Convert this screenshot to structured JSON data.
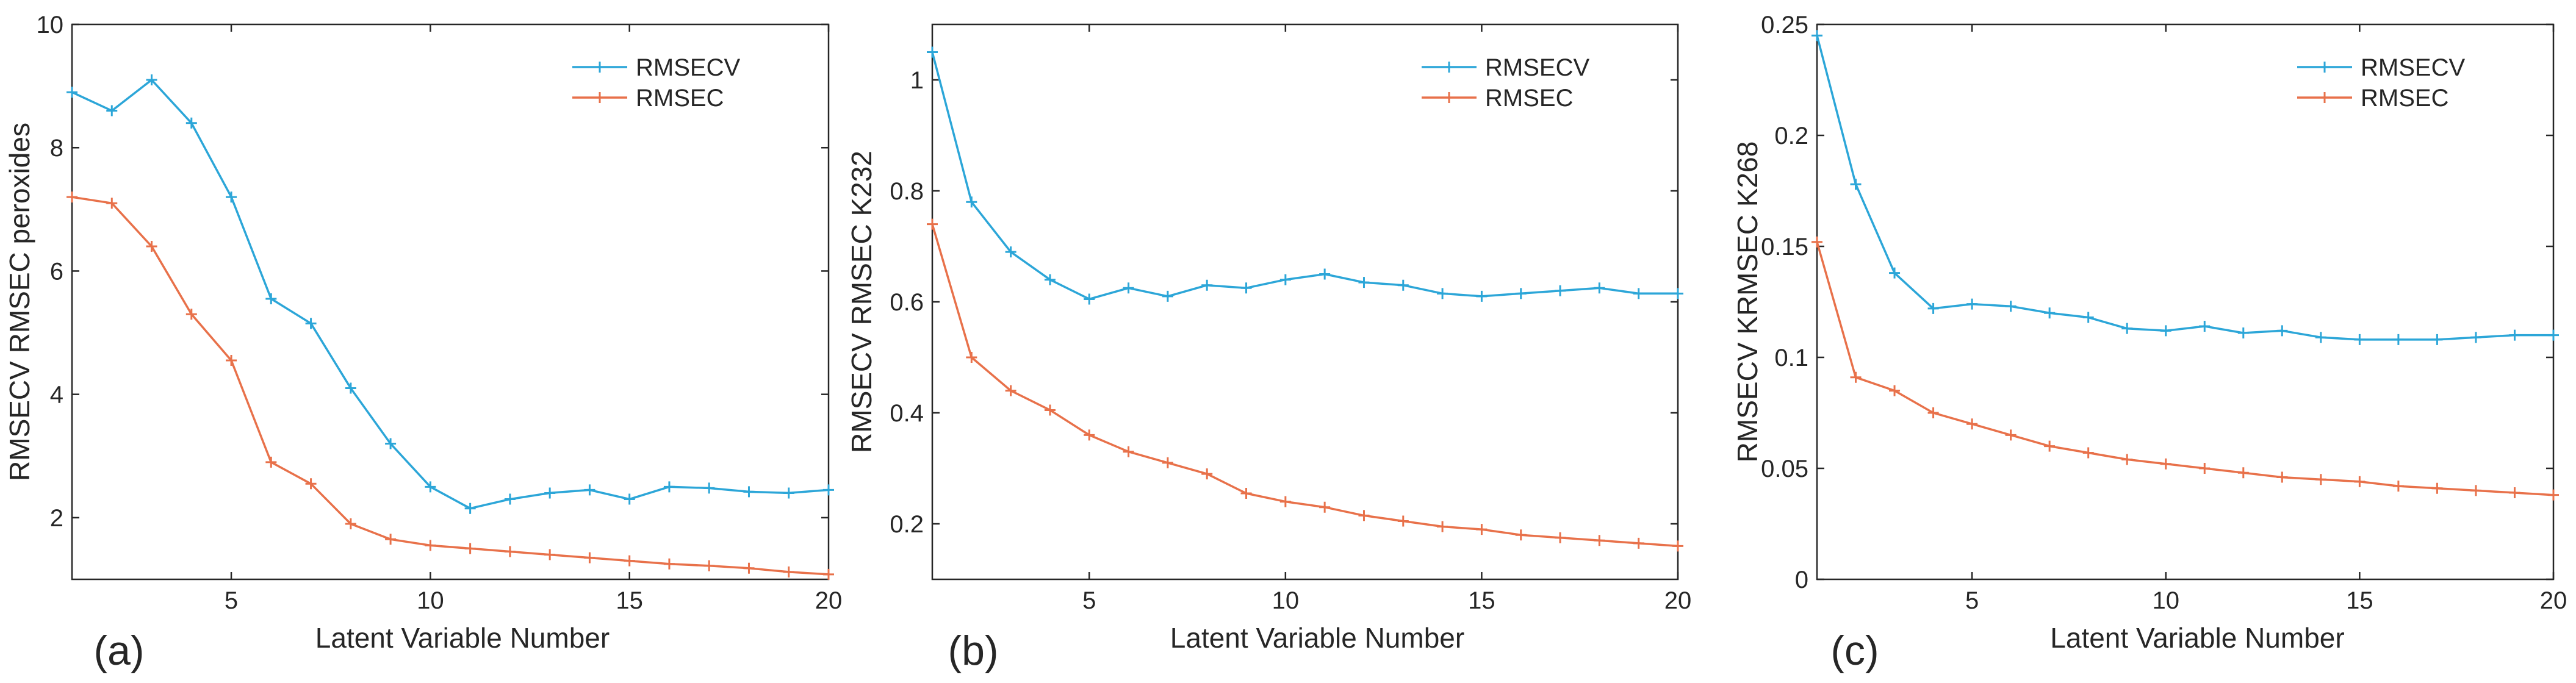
{
  "chart_data": [
    {
      "type": "line",
      "panel_label": "(a)",
      "xlabel": "Latent Variable Number",
      "ylabel": "RMSECV  RMSEC peroxides",
      "xlim": [
        1,
        20
      ],
      "ylim": [
        1,
        10
      ],
      "xticks": [
        "5",
        "10",
        "15",
        "20"
      ],
      "yticks": [
        "2",
        "4",
        "6",
        "8",
        "10"
      ],
      "legend_position": "top-right",
      "x": [
        1,
        2,
        3,
        4,
        5,
        6,
        7,
        8,
        9,
        10,
        11,
        12,
        13,
        14,
        15,
        16,
        17,
        18,
        19,
        20
      ],
      "series": [
        {
          "name": "RMSECV",
          "color": "#2ca6d8",
          "values": [
            8.9,
            8.6,
            9.1,
            8.4,
            7.2,
            5.55,
            5.15,
            4.1,
            3.2,
            2.5,
            2.15,
            2.3,
            2.4,
            2.45,
            2.3,
            2.5,
            2.48,
            2.42,
            2.4,
            2.45
          ]
        },
        {
          "name": "RMSEC",
          "color": "#e8714a",
          "values": [
            7.2,
            7.1,
            6.4,
            5.3,
            4.55,
            2.9,
            2.55,
            1.9,
            1.65,
            1.55,
            1.5,
            1.45,
            1.4,
            1.35,
            1.3,
            1.25,
            1.22,
            1.18,
            1.12,
            1.08
          ]
        }
      ]
    },
    {
      "type": "line",
      "panel_label": "(b)",
      "xlabel": "Latent Variable Number",
      "ylabel": "RMSECV  RMSEC K232",
      "xlim": [
        1,
        20
      ],
      "ylim": [
        0.1,
        1.1
      ],
      "xticks": [
        "5",
        "10",
        "15",
        "20"
      ],
      "yticks": [
        "0.2",
        "0.4",
        "0.6",
        "0.8",
        "1"
      ],
      "legend_position": "top-right",
      "x": [
        1,
        2,
        3,
        4,
        5,
        6,
        7,
        8,
        9,
        10,
        11,
        12,
        13,
        14,
        15,
        16,
        17,
        18,
        19,
        20
      ],
      "series": [
        {
          "name": "RMSECV",
          "color": "#2ca6d8",
          "values": [
            1.05,
            0.78,
            0.69,
            0.64,
            0.605,
            0.625,
            0.61,
            0.63,
            0.625,
            0.64,
            0.65,
            0.635,
            0.63,
            0.615,
            0.61,
            0.615,
            0.62,
            0.625,
            0.615,
            0.615
          ]
        },
        {
          "name": "RMSEC",
          "color": "#e8714a",
          "values": [
            0.74,
            0.5,
            0.44,
            0.405,
            0.36,
            0.33,
            0.31,
            0.29,
            0.255,
            0.24,
            0.23,
            0.215,
            0.205,
            0.195,
            0.19,
            0.18,
            0.175,
            0.17,
            0.165,
            0.16
          ]
        }
      ]
    },
    {
      "type": "line",
      "panel_label": "(c)",
      "xlabel": "Latent Variable Number",
      "ylabel": "RMSECV KRMSEC K268",
      "xlim": [
        1,
        20
      ],
      "ylim": [
        0,
        0.25
      ],
      "xticks": [
        "5",
        "10",
        "15",
        "20"
      ],
      "yticks": [
        "0",
        "0.05",
        "0.1",
        "0.15",
        "0.2",
        "0.25"
      ],
      "legend_position": "top-right",
      "x": [
        1,
        2,
        3,
        4,
        5,
        6,
        7,
        8,
        9,
        10,
        11,
        12,
        13,
        14,
        15,
        16,
        17,
        18,
        19,
        20
      ],
      "series": [
        {
          "name": "RMSECV",
          "color": "#2ca6d8",
          "values": [
            0.245,
            0.178,
            0.138,
            0.122,
            0.124,
            0.123,
            0.12,
            0.118,
            0.113,
            0.112,
            0.114,
            0.111,
            0.112,
            0.109,
            0.108,
            0.108,
            0.108,
            0.109,
            0.11,
            0.11
          ]
        },
        {
          "name": "RMSEC",
          "color": "#e8714a",
          "values": [
            0.152,
            0.091,
            0.085,
            0.075,
            0.07,
            0.065,
            0.06,
            0.057,
            0.054,
            0.052,
            0.05,
            0.048,
            0.046,
            0.045,
            0.044,
            0.042,
            0.041,
            0.04,
            0.039,
            0.038
          ]
        }
      ]
    }
  ]
}
